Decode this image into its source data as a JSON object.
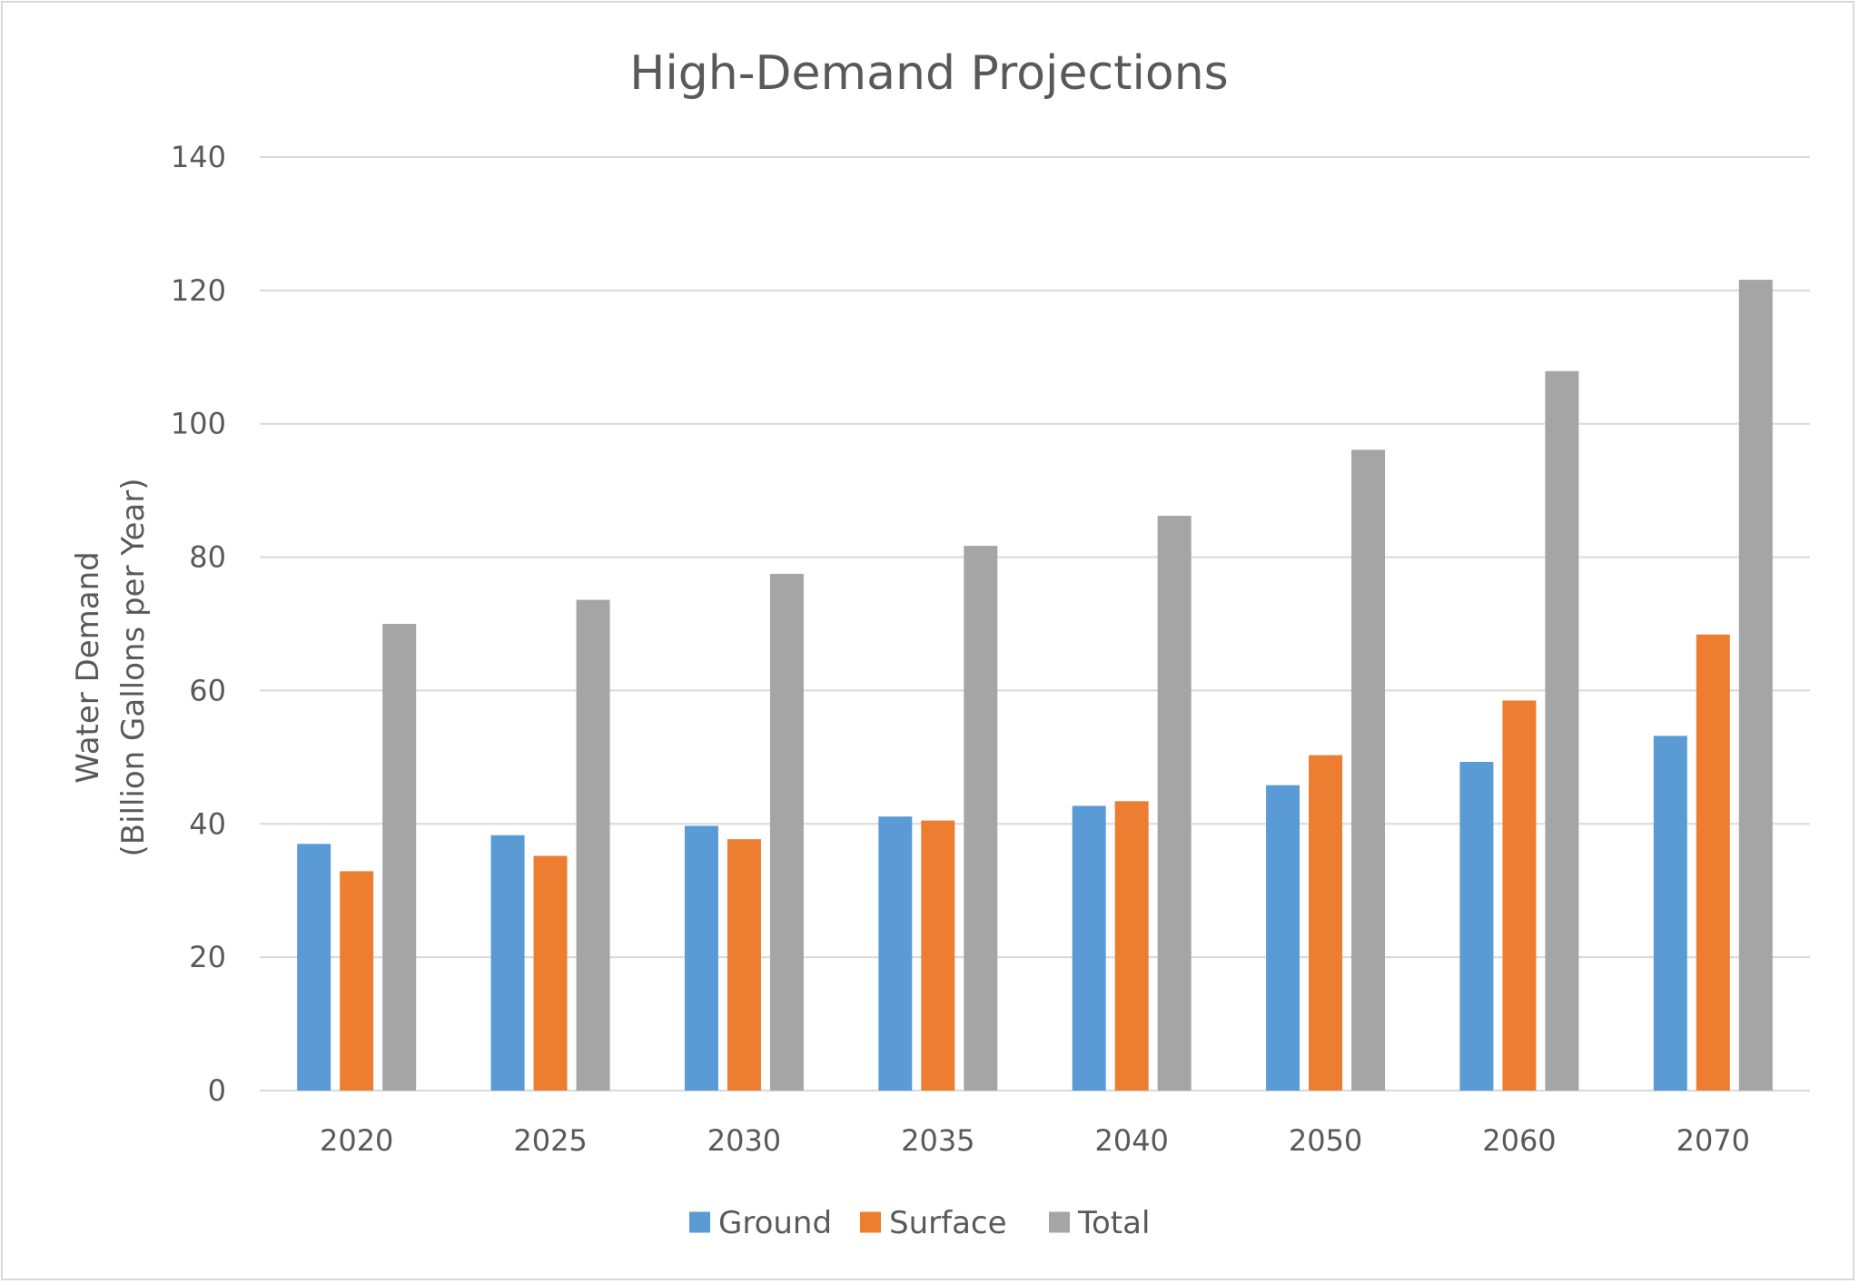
{
  "chart_data": {
    "type": "bar",
    "title": "High-Demand Projections",
    "ylabel_line1": "Water Demand",
    "ylabel_line2": "(Billion Gallons per Year)",
    "xlabel": "",
    "ylim": [
      0,
      140
    ],
    "yticks": [
      0,
      20,
      40,
      60,
      80,
      100,
      120,
      140
    ],
    "grid": true,
    "legend_position": "bottom",
    "categories": [
      "2020",
      "2025",
      "2030",
      "2035",
      "2040",
      "2050",
      "2060",
      "2070"
    ],
    "series": [
      {
        "name": "Ground",
        "color": "#5b9bd5",
        "values": [
          37,
          38.3,
          39.7,
          41.1,
          42.7,
          45.8,
          49.3,
          53.2
        ]
      },
      {
        "name": "Surface",
        "color": "#ed7d31",
        "values": [
          32.9,
          35.2,
          37.7,
          40.5,
          43.4,
          50.3,
          58.5,
          68.4
        ]
      },
      {
        "name": "Total",
        "color": "#a5a5a5",
        "values": [
          70,
          73.6,
          77.5,
          81.7,
          86.2,
          96.1,
          107.9,
          121.6
        ]
      }
    ]
  }
}
